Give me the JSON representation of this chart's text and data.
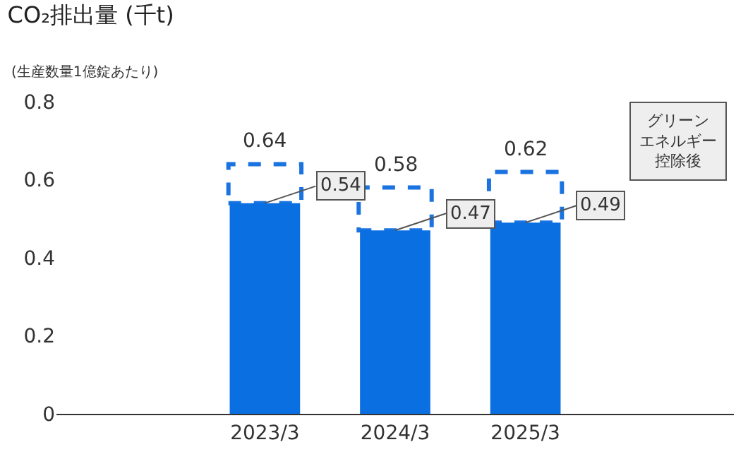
{
  "chart_data": {
    "type": "bar",
    "stacked": true,
    "title": "CO₂排出量 (千t)",
    "subtitle": "(生産数量1億錠あたり)",
    "categories": [
      "2023/3",
      "2024/3",
      "2025/3"
    ],
    "series": [
      {
        "color": "#0a6fe0",
        "values": [
          0.54,
          0.47,
          0.49
        ],
        "value_labels": [
          "0.54",
          "0.47",
          "0.49"
        ]
      },
      {
        "color": "#1a73e0",
        "line_style": "dashed",
        "values": [
          0.1,
          0.11,
          0.13
        ]
      }
    ],
    "totals": [
      "0.64",
      "0.58",
      "0.62"
    ],
    "annotations": [
      "グリーンエネルギー控除後"
    ],
    "ylim": [
      0,
      0.8
    ],
    "yticks": [
      0,
      0.2,
      0.4,
      0.6,
      0.8
    ],
    "grid": false
  }
}
